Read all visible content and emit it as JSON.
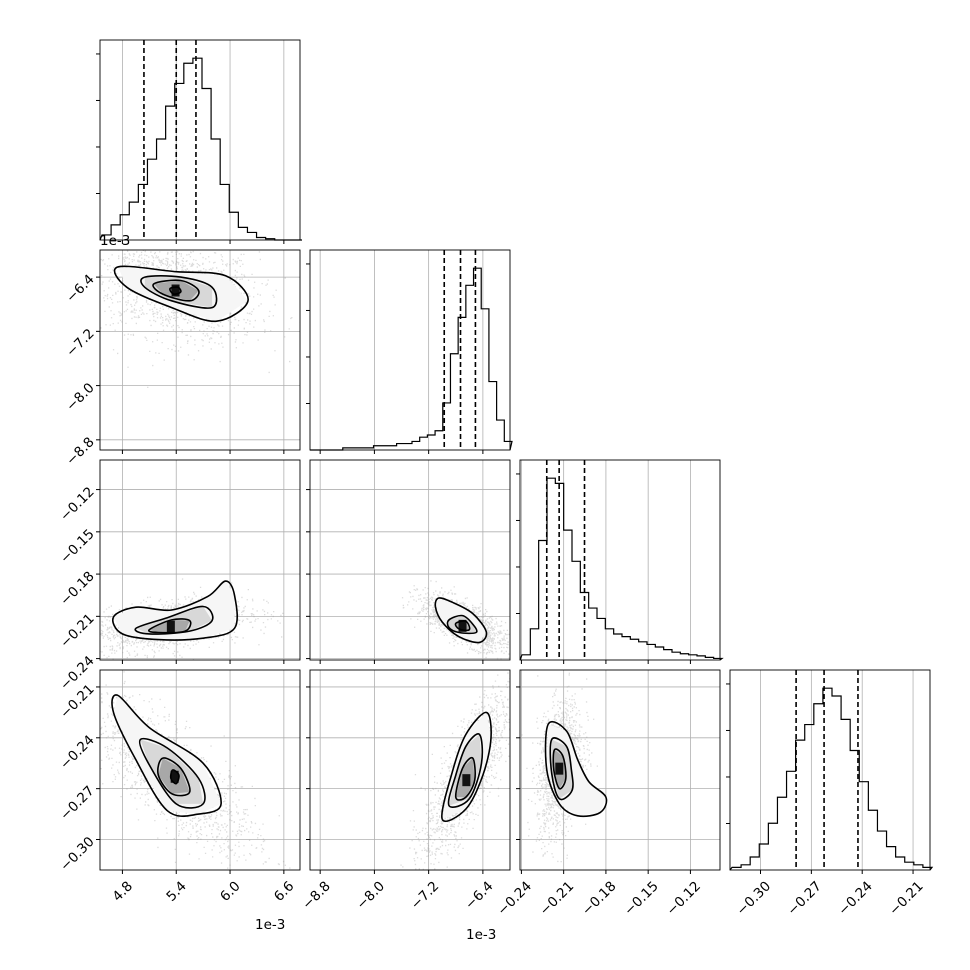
{
  "chart_data": {
    "type": "corner",
    "grid": true,
    "variables": [
      {
        "scale_label": "1e-3",
        "range": [
          4.55,
          6.78
        ],
        "ticks": [
          4.8,
          5.4,
          6.0,
          6.6
        ],
        "tick_labels": [
          "4.8",
          "5.4",
          "6.0",
          "6.6"
        ],
        "quantiles": [
          5.04,
          5.4,
          5.62
        ]
      },
      {
        "scale_label": "1e-3",
        "range": [
          -8.95,
          -6.0
        ],
        "ticks": [
          -8.8,
          -8.0,
          -7.2,
          -6.4
        ],
        "tick_labels": [
          "−8.8",
          "−8.0",
          "−7.2",
          "−6.4"
        ],
        "quantiles": [
          -6.97,
          -6.73,
          -6.51
        ]
      },
      {
        "scale_label": "",
        "range": [
          -0.241,
          -0.099
        ],
        "ticks": [
          -0.24,
          -0.21,
          -0.18,
          -0.15,
          -0.12
        ],
        "tick_labels": [
          "−0.24",
          "−0.21",
          "−0.18",
          "−0.15",
          "−0.12"
        ],
        "quantiles": [
          -0.222,
          -0.2132,
          -0.1952
        ]
      },
      {
        "scale_label": "",
        "range": [
          -0.318,
          -0.2
        ],
        "ticks": [
          -0.3,
          -0.27,
          -0.24,
          -0.21
        ],
        "tick_labels": [
          "−0.30",
          "−0.27",
          "−0.24",
          "−0.21"
        ],
        "quantiles": [
          -0.279,
          -0.2625,
          -0.2425
        ]
      }
    ],
    "histograms": [
      {
        "var": 0,
        "counts": [
          2,
          6,
          10,
          15,
          22,
          32,
          40,
          53,
          62,
          70,
          72,
          60,
          40,
          22,
          11,
          5,
          3,
          1,
          0.5,
          0,
          0,
          0
        ]
      },
      {
        "var": 1,
        "counts": [
          0,
          0,
          0,
          0,
          1,
          1,
          1,
          1,
          2,
          2,
          2,
          3,
          3,
          4,
          6,
          7,
          9,
          22,
          45,
          62,
          77,
          85,
          66,
          32,
          14,
          4
        ]
      },
      {
        "var": 2,
        "counts": [
          1,
          6,
          23,
          35,
          34,
          25,
          19,
          13,
          10,
          8,
          6,
          5,
          4.5,
          4,
          3.5,
          3,
          2.5,
          2,
          1.5,
          1.2,
          1,
          0.8,
          0.5,
          0.3
        ]
      },
      {
        "var": 3,
        "counts": [
          1,
          2,
          5,
          10,
          18,
          28,
          38,
          50,
          56,
          64,
          70,
          67,
          58,
          46,
          34,
          23,
          15,
          9,
          5,
          3,
          2,
          1
        ]
      }
    ],
    "pairs": [
      {
        "x": 0,
        "y": 1,
        "mean": [
          5.35,
          -6.55
        ],
        "sd": [
          0.3,
          0.25
        ],
        "rho": -0.3,
        "contours": [
          [
            [
              4.75,
              -6.25
            ],
            [
              5.4,
              -6.32
            ],
            [
              5.95,
              -6.38
            ],
            [
              6.2,
              -6.75
            ],
            [
              5.85,
              -7.05
            ],
            [
              5.35,
              -6.85
            ],
            [
              4.85,
              -6.55
            ]
          ],
          [
            [
              5.05,
              -6.4
            ],
            [
              5.45,
              -6.4
            ],
            [
              5.8,
              -6.55
            ],
            [
              5.8,
              -6.85
            ],
            [
              5.35,
              -6.75
            ],
            [
              5.05,
              -6.55
            ]
          ],
          [
            [
              5.15,
              -6.5
            ],
            [
              5.45,
              -6.45
            ],
            [
              5.65,
              -6.6
            ],
            [
              5.55,
              -6.75
            ],
            [
              5.25,
              -6.65
            ]
          ],
          [
            [
              5.33,
              -6.57
            ],
            [
              5.42,
              -6.55
            ],
            [
              5.45,
              -6.62
            ],
            [
              5.37,
              -6.65
            ]
          ]
        ]
      },
      {
        "x": 0,
        "y": 2,
        "mean": [
          5.3,
          -0.216
        ],
        "sd": [
          0.28,
          0.006
        ],
        "rho": 0.4,
        "contours": [
          [
            [
              4.7,
              -0.2105
            ],
            [
              4.95,
              -0.2035
            ],
            [
              5.35,
              -0.2055
            ],
            [
              5.75,
              -0.196
            ],
            [
              5.95,
              -0.185
            ],
            [
              6.05,
              -0.195
            ],
            [
              6.05,
              -0.2185
            ],
            [
              5.7,
              -0.2255
            ],
            [
              5.2,
              -0.2265
            ],
            [
              4.8,
              -0.2225
            ]
          ],
          [
            [
              4.95,
              -0.2185
            ],
            [
              5.3,
              -0.211
            ],
            [
              5.7,
              -0.203
            ],
            [
              5.8,
              -0.213
            ],
            [
              5.55,
              -0.2205
            ],
            [
              5.1,
              -0.2225
            ]
          ],
          [
            [
              5.1,
              -0.2195
            ],
            [
              5.35,
              -0.2125
            ],
            [
              5.55,
              -0.213
            ],
            [
              5.5,
              -0.2205
            ],
            [
              5.2,
              -0.2215
            ]
          ]
        ]
      },
      {
        "x": 1,
        "y": 2,
        "mean": [
          -6.7,
          -0.214
        ],
        "sd": [
          0.2,
          0.006
        ],
        "rho": -0.7,
        "contours": [
          [
            [
              -7.05,
              -0.197
            ],
            [
              -6.85,
              -0.2
            ],
            [
              -6.55,
              -0.208
            ],
            [
              -6.35,
              -0.221
            ],
            [
              -6.45,
              -0.2285
            ],
            [
              -6.75,
              -0.2245
            ],
            [
              -7.0,
              -0.214
            ],
            [
              -7.1,
              -0.203
            ]
          ],
          [
            [
              -6.9,
              -0.2125
            ],
            [
              -6.7,
              -0.2095
            ],
            [
              -6.55,
              -0.2155
            ],
            [
              -6.5,
              -0.2215
            ],
            [
              -6.75,
              -0.2215
            ],
            [
              -6.9,
              -0.218
            ]
          ],
          [
            [
              -6.8,
              -0.215
            ],
            [
              -6.65,
              -0.2135
            ],
            [
              -6.6,
              -0.2195
            ],
            [
              -6.75,
              -0.219
            ]
          ]
        ]
      },
      {
        "x": 0,
        "y": 3,
        "mean": [
          5.35,
          -0.263
        ],
        "sd": [
          0.3,
          0.015
        ],
        "rho": -0.8,
        "contours": [
          [
            [
              4.75,
              -0.215
            ],
            [
              5.1,
              -0.234
            ],
            [
              5.7,
              -0.255
            ],
            [
              5.9,
              -0.279
            ],
            [
              5.65,
              -0.285
            ],
            [
              5.3,
              -0.283
            ],
            [
              4.95,
              -0.253
            ],
            [
              4.7,
              -0.225
            ]
          ],
          [
            [
              5.0,
              -0.241
            ],
            [
              5.3,
              -0.246
            ],
            [
              5.65,
              -0.264
            ],
            [
              5.7,
              -0.279
            ],
            [
              5.4,
              -0.279
            ],
            [
              5.1,
              -0.256
            ]
          ],
          [
            [
              5.25,
              -0.252
            ],
            [
              5.45,
              -0.258
            ],
            [
              5.55,
              -0.272
            ],
            [
              5.35,
              -0.273
            ],
            [
              5.2,
              -0.262
            ]
          ],
          [
            [
              5.36,
              -0.259
            ],
            [
              5.43,
              -0.262
            ],
            [
              5.4,
              -0.267
            ],
            [
              5.34,
              -0.264
            ]
          ]
        ]
      },
      {
        "x": 1,
        "y": 3,
        "mean": [
          -6.65,
          -0.262
        ],
        "sd": [
          0.2,
          0.015
        ],
        "rho": 0.8,
        "contours": [
          [
            [
              -7.0,
              -0.288
            ],
            [
              -6.85,
              -0.26
            ],
            [
              -6.65,
              -0.238
            ],
            [
              -6.35,
              -0.225
            ],
            [
              -6.28,
              -0.24
            ],
            [
              -6.4,
              -0.262
            ],
            [
              -6.65,
              -0.282
            ]
          ],
          [
            [
              -6.9,
              -0.28
            ],
            [
              -6.8,
              -0.262
            ],
            [
              -6.65,
              -0.245
            ],
            [
              -6.45,
              -0.238
            ],
            [
              -6.42,
              -0.255
            ],
            [
              -6.6,
              -0.276
            ]
          ],
          [
            [
              -6.8,
              -0.275
            ],
            [
              -6.7,
              -0.258
            ],
            [
              -6.55,
              -0.252
            ],
            [
              -6.52,
              -0.265
            ],
            [
              -6.65,
              -0.275
            ]
          ]
        ]
      },
      {
        "x": 2,
        "y": 3,
        "mean": [
          -0.213,
          -0.257
        ],
        "sd": [
          0.005,
          0.012
        ],
        "rho": 0.3,
        "contours": [
          [
            [
              -0.221,
              -0.232
            ],
            [
              -0.208,
              -0.236
            ],
            [
              -0.2,
              -0.253
            ],
            [
              -0.192,
              -0.266
            ],
            [
              -0.18,
              -0.275
            ],
            [
              -0.184,
              -0.284
            ],
            [
              -0.2,
              -0.286
            ],
            [
              -0.213,
              -0.279
            ],
            [
              -0.222,
              -0.259
            ]
          ],
          [
            [
              -0.2185,
              -0.241
            ],
            [
              -0.208,
              -0.245
            ],
            [
              -0.2045,
              -0.259
            ],
            [
              -0.204,
              -0.271
            ],
            [
              -0.213,
              -0.276
            ],
            [
              -0.2185,
              -0.261
            ]
          ],
          [
            [
              -0.2165,
              -0.247
            ],
            [
              -0.2105,
              -0.251
            ],
            [
              -0.2085,
              -0.264
            ],
            [
              -0.213,
              -0.27
            ],
            [
              -0.217,
              -0.259
            ]
          ]
        ]
      }
    ]
  }
}
